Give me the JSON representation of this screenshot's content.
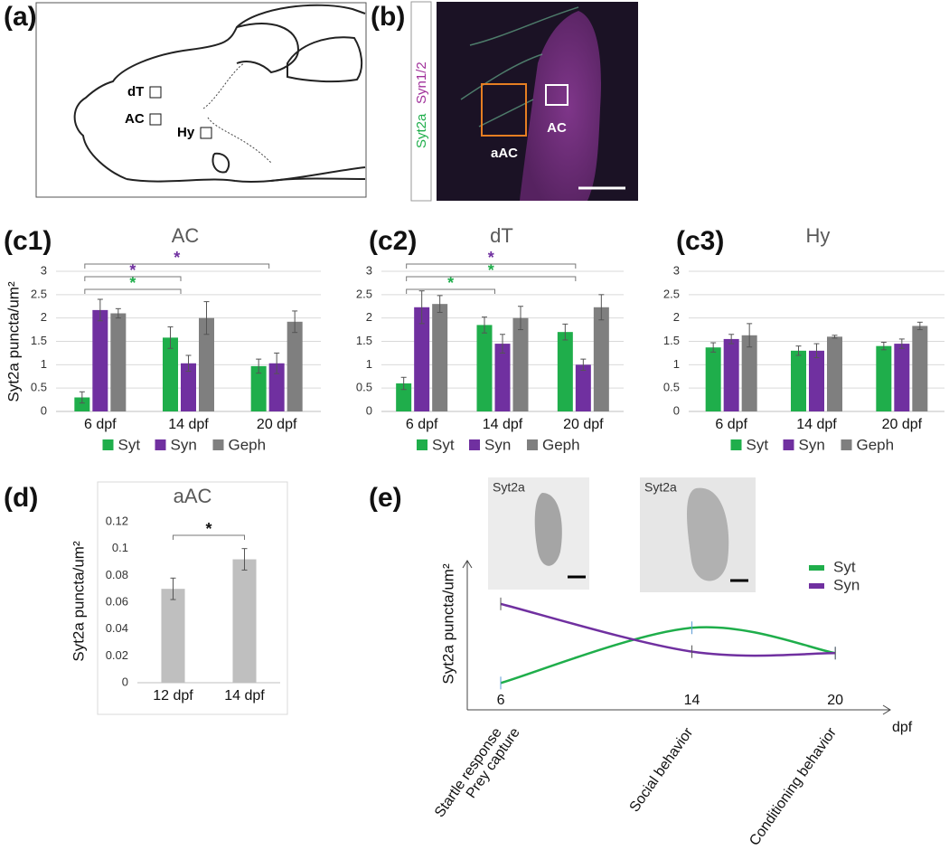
{
  "panels": {
    "a": {
      "label": "(a)",
      "regions": [
        "dT",
        "AC",
        "Hy"
      ]
    },
    "b": {
      "label": "(b)",
      "stains": [
        "Syt2a",
        "Syn1/2"
      ],
      "regions": [
        "aAC",
        "AC"
      ]
    }
  },
  "chart_data": [
    {
      "type": "bar",
      "panel_label": "(c1)",
      "title": "AC",
      "y_label": "Syt2a puncta/um²",
      "categories": [
        "6 dpf",
        "14 dpf",
        "20 dpf"
      ],
      "series": [
        {
          "name": "Syt",
          "color": "#1fae4b",
          "values": [
            0.3,
            1.58,
            0.97
          ],
          "errors": [
            0.12,
            0.23,
            0.15
          ]
        },
        {
          "name": "Syn",
          "color": "#7030a0",
          "values": [
            2.17,
            1.03,
            1.03
          ],
          "errors": [
            0.23,
            0.17,
            0.22
          ]
        },
        {
          "name": "Geph",
          "color": "#7f7f7f",
          "values": [
            2.1,
            2.0,
            1.92
          ],
          "errors": [
            0.1,
            0.35,
            0.23
          ]
        }
      ],
      "ylim": [
        0,
        3
      ],
      "yticks": [
        0,
        0.5,
        1,
        1.5,
        2,
        2.5,
        3
      ],
      "grid": true,
      "legend": "bottom",
      "brackets": [
        {
          "from": 0,
          "to": 1,
          "label": "*",
          "color": "#1fae4b"
        },
        {
          "from": 0,
          "to": 1,
          "label": "*",
          "color": "#7030a0"
        },
        {
          "from": 0,
          "to": 2,
          "label": "*",
          "color": "#7030a0"
        }
      ]
    },
    {
      "type": "bar",
      "panel_label": "(c2)",
      "title": "dT",
      "categories": [
        "6 dpf",
        "14 dpf",
        "20 dpf"
      ],
      "series": [
        {
          "name": "Syt",
          "color": "#1fae4b",
          "values": [
            0.6,
            1.85,
            1.7
          ],
          "errors": [
            0.13,
            0.17,
            0.17
          ]
        },
        {
          "name": "Syn",
          "color": "#7030a0",
          "values": [
            2.23,
            1.45,
            1.0
          ],
          "errors": [
            0.35,
            0.2,
            0.12
          ]
        },
        {
          "name": "Geph",
          "color": "#7f7f7f",
          "values": [
            2.3,
            2.0,
            2.23
          ],
          "errors": [
            0.18,
            0.25,
            0.27
          ]
        }
      ],
      "ylim": [
        0,
        3
      ],
      "yticks": [
        0,
        0.5,
        1,
        1.5,
        2,
        2.5,
        3
      ],
      "grid": true,
      "legend": "bottom",
      "brackets": [
        {
          "from": 0,
          "to": 1,
          "label": "*",
          "color": "#1fae4b"
        },
        {
          "from": 0,
          "to": 2,
          "label": "*",
          "color": "#1fae4b"
        },
        {
          "from": 0,
          "to": 2,
          "label": "*",
          "color": "#7030a0"
        }
      ]
    },
    {
      "type": "bar",
      "panel_label": "(c3)",
      "title": "Hy",
      "categories": [
        "6 dpf",
        "14 dpf",
        "20 dpf"
      ],
      "series": [
        {
          "name": "Syt",
          "color": "#1fae4b",
          "values": [
            1.37,
            1.3,
            1.4
          ],
          "errors": [
            0.1,
            0.1,
            0.08
          ]
        },
        {
          "name": "Syn",
          "color": "#7030a0",
          "values": [
            1.55,
            1.3,
            1.45
          ],
          "errors": [
            0.1,
            0.15,
            0.1
          ]
        },
        {
          "name": "Geph",
          "color": "#7f7f7f",
          "values": [
            1.63,
            1.6,
            1.83
          ],
          "errors": [
            0.25,
            0.03,
            0.08
          ]
        }
      ],
      "ylim": [
        0,
        3
      ],
      "yticks": [
        0,
        0.5,
        1,
        1.5,
        2,
        2.5,
        3
      ],
      "grid": true,
      "legend": "bottom"
    },
    {
      "type": "bar",
      "panel_label": "(d)",
      "title": "aAC",
      "y_label": "Syt2a puncta/um²",
      "categories": [
        "12 dpf",
        "14 dpf"
      ],
      "series": [
        {
          "color": "#bfbfbf",
          "values": [
            0.07,
            0.092
          ],
          "errors": [
            0.008,
            0.008
          ]
        }
      ],
      "ylim": [
        0,
        0.12
      ],
      "yticks": [
        0,
        0.02,
        0.04,
        0.06,
        0.08,
        0.1,
        0.12
      ],
      "grid": false,
      "brackets": [
        {
          "from": 0,
          "to": 1,
          "label": "*",
          "color": "#111111"
        }
      ]
    },
    {
      "type": "line",
      "panel_label": "(e)",
      "y_label": "Syt2a puncta/um²",
      "x_label": "dpf",
      "image_labels": [
        "Syt2a",
        "Syt2a"
      ],
      "x": [
        6,
        14,
        20
      ],
      "xlim": [
        4.6,
        22.3
      ],
      "xticks": [
        6,
        14,
        20
      ],
      "ylim": [
        0,
        1
      ],
      "series": [
        {
          "name": "Syt",
          "color": "#1fae4b",
          "values": [
            0.18,
            0.55,
            0.38
          ]
        },
        {
          "name": "Syn",
          "color": "#7030a0",
          "values": [
            0.71,
            0.39,
            0.38
          ]
        }
      ],
      "legend": "upper right",
      "annotations": [
        {
          "x": 6,
          "lines": [
            "Startle response",
            "Prey capture"
          ]
        },
        {
          "x": 14,
          "lines": [
            "Social behavior"
          ]
        },
        {
          "x": 20,
          "lines": [
            "Conditioning behavior"
          ]
        }
      ]
    }
  ]
}
